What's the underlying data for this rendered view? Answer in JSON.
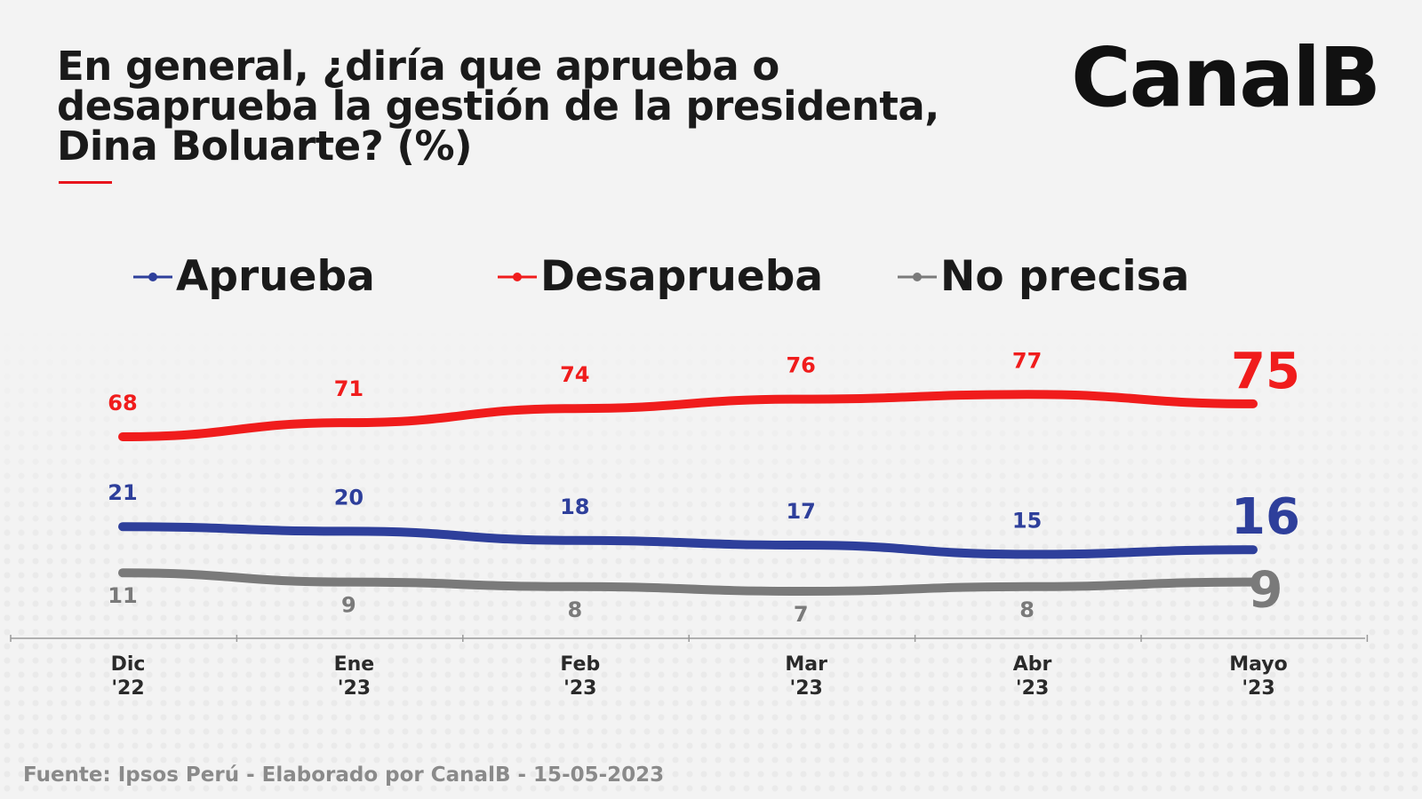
{
  "header": {
    "title": "En general, ¿diría que aprueba o desaprueba la gestión de la presidenta, Dina Boluarte? (%)",
    "brand": "CanalB"
  },
  "footer": {
    "source": "Fuente: Ipsos Perú - Elaborado por CanalB - 15-05-2023"
  },
  "colors": {
    "aprueba": "#2e3f9b",
    "desaprueba": "#f01c1c",
    "no_precisa": "#7a7a7a",
    "accent_rule": "#e8141c"
  },
  "legend": [
    {
      "name": "Aprueba",
      "color": "#2e3f9b"
    },
    {
      "name": "Desaprueba",
      "color": "#f01c1c"
    },
    {
      "name": "No precisa",
      "color": "#7a7a7a"
    }
  ],
  "chart_data": {
    "type": "line",
    "title": "En general, ¿diría que aprueba o desaprueba la gestión de la presidenta, Dina Boluarte? (%)",
    "categories": [
      [
        "Dic",
        "'22"
      ],
      [
        "Ene",
        "'23"
      ],
      [
        "Feb",
        "'23"
      ],
      [
        "Mar",
        "'23"
      ],
      [
        "Abr",
        "'23"
      ],
      [
        "Mayo",
        "'23"
      ]
    ],
    "series": [
      {
        "name": "Desaprueba",
        "color": "#f01c1c",
        "values": [
          68,
          71,
          74,
          76,
          77,
          75
        ],
        "labels": [
          "68",
          "71",
          "74",
          "76",
          "77",
          "75"
        ]
      },
      {
        "name": "Aprueba",
        "color": "#2e3f9b",
        "values": [
          21,
          20,
          18,
          17,
          15,
          16
        ],
        "labels": [
          "21",
          "20",
          "18",
          "17",
          "15",
          "16"
        ]
      },
      {
        "name": "No precisa",
        "color": "#7a7a7a",
        "values": [
          11,
          9,
          8,
          7,
          8,
          9
        ],
        "labels": [
          "11",
          "9",
          "8",
          "7",
          "8",
          "9"
        ]
      }
    ],
    "xlabel": "",
    "ylabel": "",
    "legend_position": "top",
    "grid": false,
    "highlight_last": true
  }
}
